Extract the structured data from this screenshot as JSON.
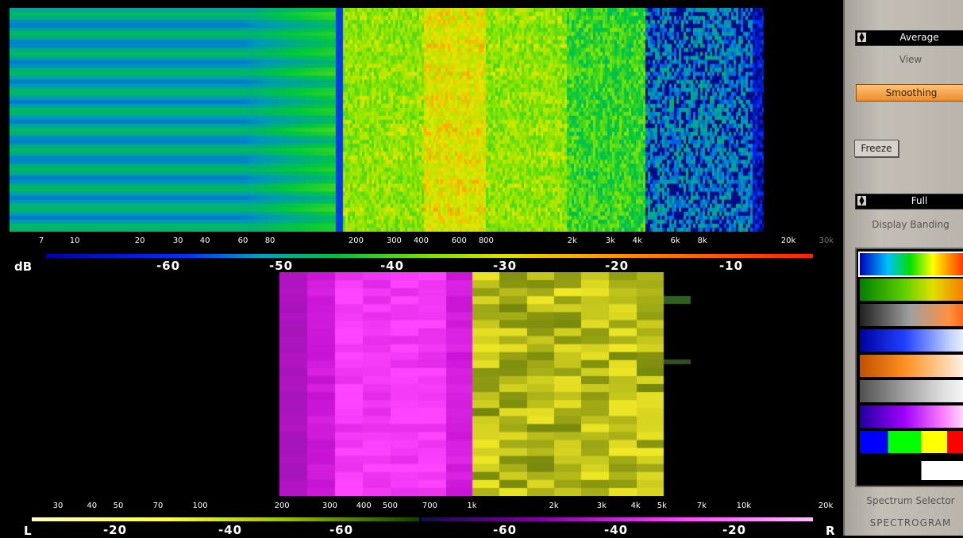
{
  "spectrum_axis": {
    "ticks": [
      {
        "label": "7",
        "f": 7
      },
      {
        "label": "10",
        "f": 10
      },
      {
        "label": "20",
        "f": 20
      },
      {
        "label": "30",
        "f": 30
      },
      {
        "label": "40",
        "f": 40
      },
      {
        "label": "60",
        "f": 60
      },
      {
        "label": "80",
        "f": 80
      },
      {
        "label": "200",
        "f": 200
      },
      {
        "label": "300",
        "f": 300
      },
      {
        "label": "400",
        "f": 400
      },
      {
        "label": "600",
        "f": 600
      },
      {
        "label": "800",
        "f": 800
      },
      {
        "label": "2k",
        "f": 2000
      },
      {
        "label": "3k",
        "f": 3000
      },
      {
        "label": "4k",
        "f": 4000
      },
      {
        "label": "6k",
        "f": 6000
      },
      {
        "label": "8k",
        "f": 8000
      },
      {
        "label": "20k",
        "f": 20000
      },
      {
        "label": "30k",
        "f": 30000,
        "dim": true
      }
    ]
  },
  "db_scale": {
    "unit": "dB",
    "labels": [
      "-60",
      "-50",
      "-40",
      "-30",
      "-20",
      "-10"
    ]
  },
  "stereo_axis": {
    "ticks": [
      {
        "label": "30",
        "f": 30
      },
      {
        "label": "40",
        "f": 40
      },
      {
        "label": "50",
        "f": 50
      },
      {
        "label": "70",
        "f": 70
      },
      {
        "label": "100",
        "f": 100
      },
      {
        "label": "200",
        "f": 200
      },
      {
        "label": "300",
        "f": 300
      },
      {
        "label": "400",
        "f": 400
      },
      {
        "label": "500",
        "f": 500
      },
      {
        "label": "700",
        "f": 700
      },
      {
        "label": "1k",
        "f": 1000
      },
      {
        "label": "2k",
        "f": 2000
      },
      {
        "label": "3k",
        "f": 3000
      },
      {
        "label": "4k",
        "f": 4000
      },
      {
        "label": "5k",
        "f": 5000
      },
      {
        "label": "7k",
        "f": 7000
      },
      {
        "label": "10k",
        "f": 10000
      },
      {
        "label": "20k",
        "f": 20000
      }
    ]
  },
  "stereo_scale": {
    "left_channel": "L",
    "right_channel": "R",
    "left_labels": [
      "-20",
      "-40",
      "-60"
    ],
    "right_labels": [
      "-60",
      "-40",
      "-20"
    ]
  },
  "panel": {
    "view_select": "Average",
    "view_caption": "View",
    "smoothing_label": "Smoothing",
    "freeze_label": "Freeze",
    "banding_select": "Full",
    "banding_caption": "Display Banding",
    "spectrum_selector_caption": "Spectrum Selector",
    "mode_label": "SPECTROGRAM"
  },
  "colors": {
    "panel_bg": "#b9b4ac",
    "smoothing_active": "#ef8c28"
  },
  "palettes": [
    {
      "name": "rainbow",
      "active": true
    },
    {
      "name": "green-orange"
    },
    {
      "name": "gray-orange"
    },
    {
      "name": "blue-white"
    },
    {
      "name": "orange-white"
    },
    {
      "name": "gray-white"
    },
    {
      "name": "purple-white"
    },
    {
      "name": "stepped"
    },
    {
      "name": "black-white"
    }
  ]
}
